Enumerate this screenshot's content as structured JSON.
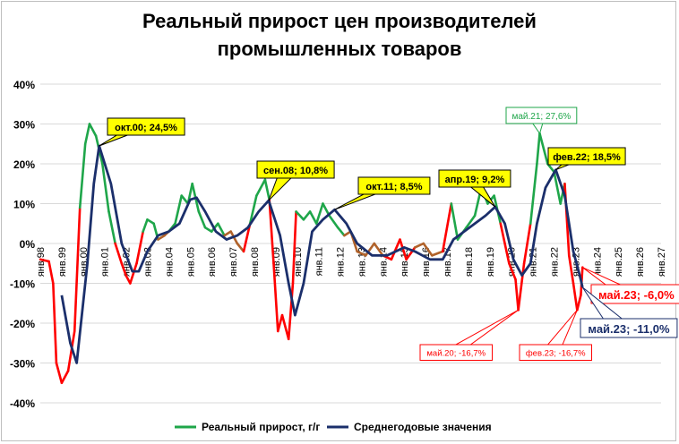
{
  "chart_data": {
    "type": "line",
    "title_line1": "Реальный прирост цен производителей",
    "title_line2": "промышленных товаров",
    "ylim": [
      -40,
      40
    ],
    "yticks": [
      "40%",
      "30%",
      "20%",
      "10%",
      "0%",
      "-10%",
      "-20%",
      "-30%",
      "-40%"
    ],
    "ytick_values": [
      40,
      30,
      20,
      10,
      0,
      -10,
      -20,
      -30,
      -40
    ],
    "xlim": [
      1998,
      2027
    ],
    "xticks": [
      "янв.98",
      "янв.99",
      "янв.00",
      "янв.01",
      "янв.02",
      "янв.03",
      "янв.04",
      "янв.05",
      "янв.06",
      "янв.07",
      "янв.08",
      "янв.09",
      "янв.10",
      "янв.11",
      "янв.12",
      "янв.13",
      "янв.14",
      "янв.15",
      "янв.16",
      "янв.17",
      "янв.18",
      "янв.19",
      "янв.20",
      "янв.21",
      "янв.22",
      "янв.23",
      "янв.24",
      "янв.25",
      "янв.26",
      "янв.27"
    ],
    "grid": true,
    "legend_position": "bottom",
    "colors": {
      "positive": "#1fa64a",
      "negative": "#ff0000",
      "neutral": "#b0622a",
      "average": "#1b2f6b",
      "label_yellow": "#ffff00"
    },
    "series": [
      {
        "name": "Реальный прирост, г/г",
        "x_unit": "year",
        "points": [
          [
            1998.0,
            -4
          ],
          [
            1998.4,
            -4.5
          ],
          [
            1998.6,
            -10
          ],
          [
            1998.75,
            -30
          ],
          [
            1999.0,
            -35
          ],
          [
            1999.3,
            -32
          ],
          [
            1999.6,
            -22
          ],
          [
            1999.85,
            9
          ],
          [
            2000.1,
            25
          ],
          [
            2000.3,
            30
          ],
          [
            2000.6,
            27
          ],
          [
            2000.9,
            20
          ],
          [
            2001.2,
            8
          ],
          [
            2001.5,
            0
          ],
          [
            2001.8,
            -5
          ],
          [
            2002.0,
            -8
          ],
          [
            2002.2,
            -10
          ],
          [
            2002.5,
            -5
          ],
          [
            2002.8,
            3
          ],
          [
            2003.0,
            6
          ],
          [
            2003.3,
            5
          ],
          [
            2003.5,
            1
          ],
          [
            2003.8,
            2
          ],
          [
            2004.0,
            3
          ],
          [
            2004.3,
            5
          ],
          [
            2004.6,
            12
          ],
          [
            2004.9,
            10
          ],
          [
            2005.1,
            15
          ],
          [
            2005.4,
            8
          ],
          [
            2005.7,
            4
          ],
          [
            2006.0,
            3
          ],
          [
            2006.3,
            5
          ],
          [
            2006.6,
            2
          ],
          [
            2006.9,
            3
          ],
          [
            2007.2,
            0
          ],
          [
            2007.5,
            -2
          ],
          [
            2007.8,
            5
          ],
          [
            2008.1,
            12
          ],
          [
            2008.5,
            16
          ],
          [
            2008.7,
            11
          ],
          [
            2008.9,
            -5
          ],
          [
            2009.1,
            -22
          ],
          [
            2009.3,
            -18
          ],
          [
            2009.6,
            -24
          ],
          [
            2009.8,
            -10
          ],
          [
            2009.95,
            8
          ],
          [
            2010.3,
            6
          ],
          [
            2010.6,
            8
          ],
          [
            2010.9,
            5
          ],
          [
            2011.2,
            10
          ],
          [
            2011.5,
            7
          ],
          [
            2011.9,
            4
          ],
          [
            2012.2,
            2
          ],
          [
            2012.5,
            3
          ],
          [
            2012.8,
            -2
          ],
          [
            2013.2,
            -3
          ],
          [
            2013.6,
            0
          ],
          [
            2014.0,
            -3
          ],
          [
            2014.4,
            -4
          ],
          [
            2014.8,
            1
          ],
          [
            2015.1,
            -4
          ],
          [
            2015.5,
            -1
          ],
          [
            2015.9,
            0
          ],
          [
            2016.3,
            -3
          ],
          [
            2016.8,
            -2
          ],
          [
            2017.2,
            10
          ],
          [
            2017.5,
            1
          ],
          [
            2017.9,
            4
          ],
          [
            2018.3,
            7
          ],
          [
            2018.6,
            14
          ],
          [
            2018.9,
            10
          ],
          [
            2019.2,
            12
          ],
          [
            2019.5,
            5
          ],
          [
            2019.9,
            -5
          ],
          [
            2020.2,
            -9
          ],
          [
            2020.33,
            -16.7
          ],
          [
            2020.6,
            -5
          ],
          [
            2020.9,
            5
          ],
          [
            2021.2,
            20
          ],
          [
            2021.33,
            27.6
          ],
          [
            2021.7,
            20
          ],
          [
            2022.0,
            18
          ],
          [
            2022.3,
            10
          ],
          [
            2022.5,
            15
          ],
          [
            2022.7,
            -3
          ],
          [
            2022.9,
            -10
          ],
          [
            2023.08,
            -16.7
          ],
          [
            2023.25,
            -13
          ],
          [
            2023.33,
            -6
          ]
        ]
      },
      {
        "name": "Среднегодовые значения",
        "x_unit": "year",
        "points": [
          [
            1999.0,
            -13
          ],
          [
            1999.4,
            -25
          ],
          [
            1999.7,
            -30
          ],
          [
            2000.2,
            -5
          ],
          [
            2000.5,
            15
          ],
          [
            2000.75,
            24.5
          ],
          [
            2001.3,
            15
          ],
          [
            2001.8,
            0
          ],
          [
            2002.3,
            -7
          ],
          [
            2002.6,
            -7
          ],
          [
            2003.0,
            -2
          ],
          [
            2003.5,
            2
          ],
          [
            2004.0,
            3
          ],
          [
            2004.5,
            5
          ],
          [
            2005.0,
            11
          ],
          [
            2005.3,
            11.5
          ],
          [
            2005.7,
            8
          ],
          [
            2006.2,
            3
          ],
          [
            2006.7,
            1
          ],
          [
            2007.2,
            2
          ],
          [
            2007.7,
            4
          ],
          [
            2008.2,
            8
          ],
          [
            2008.67,
            10.8
          ],
          [
            2009.2,
            2
          ],
          [
            2009.6,
            -10
          ],
          [
            2009.9,
            -18
          ],
          [
            2010.3,
            -10
          ],
          [
            2010.7,
            3
          ],
          [
            2011.2,
            6
          ],
          [
            2011.75,
            8.5
          ],
          [
            2012.3,
            5
          ],
          [
            2012.8,
            0
          ],
          [
            2013.5,
            -3
          ],
          [
            2014.2,
            -3
          ],
          [
            2015.0,
            -1
          ],
          [
            2015.5,
            -2
          ],
          [
            2016.2,
            -4
          ],
          [
            2016.8,
            -4
          ],
          [
            2017.3,
            1
          ],
          [
            2017.8,
            3
          ],
          [
            2018.3,
            5
          ],
          [
            2018.8,
            7
          ],
          [
            2019.25,
            9.2
          ],
          [
            2019.7,
            5
          ],
          [
            2020.1,
            -4
          ],
          [
            2020.5,
            -8
          ],
          [
            2020.9,
            -5
          ],
          [
            2021.2,
            5
          ],
          [
            2021.6,
            14
          ],
          [
            2022.08,
            18.5
          ],
          [
            2022.5,
            12
          ],
          [
            2022.9,
            -2
          ],
          [
            2023.2,
            -8
          ],
          [
            2023.33,
            -11
          ]
        ]
      }
    ],
    "annotations": [
      {
        "text": "окт.00; 24,5%",
        "x": 2000.75,
        "y": 24.5,
        "style": "yellow"
      },
      {
        "text": "сен.08; 10,8%",
        "x": 2008.67,
        "y": 10.8,
        "style": "yellow"
      },
      {
        "text": "окт.11; 8,5%",
        "x": 2011.75,
        "y": 8.5,
        "style": "yellow"
      },
      {
        "text": "апр.19; 9,2%",
        "x": 2019.25,
        "y": 9.2,
        "style": "yellow"
      },
      {
        "text": "фев.22; 18,5%",
        "x": 2022.08,
        "y": 18.5,
        "style": "yellow"
      },
      {
        "text": "май.21; 27,6%",
        "x": 2021.33,
        "y": 27.6,
        "style": "green"
      },
      {
        "text": "май.20; -16,7%",
        "x": 2020.33,
        "y": -16.7,
        "style": "red-small"
      },
      {
        "text": "фев.23; -16,7%",
        "x": 2023.08,
        "y": -16.7,
        "style": "red-small"
      },
      {
        "text": "май.23; -6,0%",
        "x": 2023.33,
        "y": -6,
        "style": "red-big"
      },
      {
        "text": "май.23; -11,0%",
        "x": 2023.33,
        "y": -11,
        "style": "navy-big"
      }
    ]
  }
}
